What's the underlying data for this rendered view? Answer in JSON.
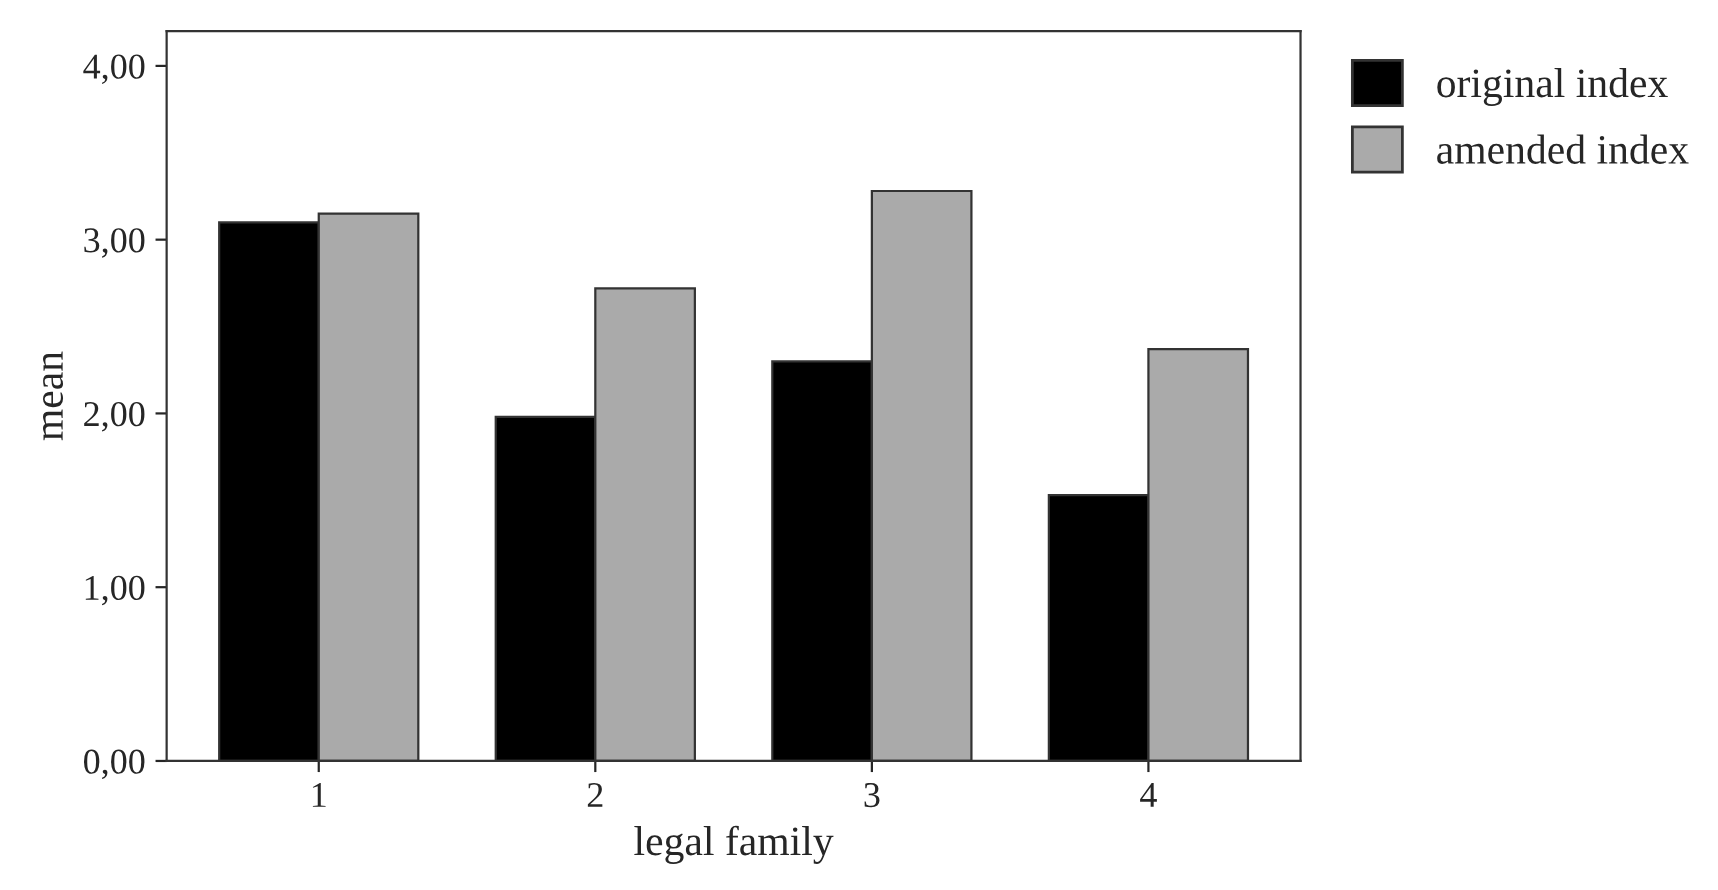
{
  "chart_data": {
    "type": "bar",
    "xlabel": "legal family",
    "ylabel": "mean",
    "categories": [
      "1",
      "2",
      "3",
      "4"
    ],
    "series": [
      {
        "name": "original index",
        "color": "#000000",
        "values": [
          3.1,
          1.98,
          2.3,
          1.53
        ]
      },
      {
        "name": "amended index",
        "color": "#aaaaaa",
        "values": [
          3.15,
          2.72,
          3.28,
          2.37
        ]
      }
    ],
    "ylim": [
      0,
      4.2
    ],
    "yticks": [
      {
        "value": 0,
        "label": "0,00"
      },
      {
        "value": 1,
        "label": "1,00"
      },
      {
        "value": 2,
        "label": "2,00"
      },
      {
        "value": 3,
        "label": "3,00"
      },
      {
        "value": 4,
        "label": "4,00"
      }
    ],
    "grid": false,
    "legend": "top right"
  }
}
